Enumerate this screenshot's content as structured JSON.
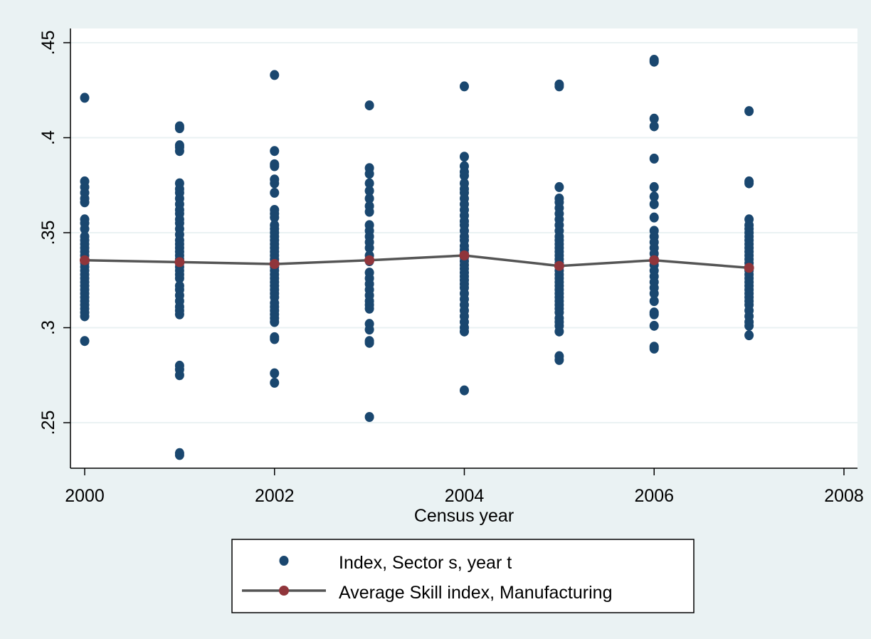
{
  "colors": {
    "outer_background": "#eaf2f3",
    "plot_background": "#ffffff",
    "grid": "#eaf2f3",
    "scatter_marker": "#1a476f",
    "mean_line": "#555555",
    "mean_marker": "#90353b"
  },
  "chart_data": {
    "type": "scatter",
    "title": "",
    "xlabel": "Census year",
    "ylabel": "",
    "xlim": [
      2000,
      2008
    ],
    "ylim": [
      0.23,
      0.455
    ],
    "x_ticks": [
      2000,
      2002,
      2004,
      2006,
      2008
    ],
    "x_tick_labels": [
      "2000",
      "2002",
      "2004",
      "2006",
      "2008"
    ],
    "y_ticks": [
      0.25,
      0.3,
      0.35,
      0.4,
      0.45
    ],
    "y_tick_labels": [
      ".25",
      ".3",
      ".35",
      ".4",
      ".45"
    ],
    "grid": "horizontal",
    "legend_position": "bottom",
    "series": [
      {
        "name": "Index, Sector s, year t",
        "kind": "scatter",
        "points": [
          {
            "x": 2000,
            "y": [
              0.421,
              0.377,
              0.374,
              0.371,
              0.368,
              0.366,
              0.357,
              0.355,
              0.352,
              0.348,
              0.346,
              0.344,
              0.342,
              0.34,
              0.338,
              0.336,
              0.334,
              0.332,
              0.33,
              0.328,
              0.326,
              0.324,
              0.322,
              0.32,
              0.318,
              0.316,
              0.314,
              0.312,
              0.31,
              0.308,
              0.306,
              0.293
            ]
          },
          {
            "x": 2001,
            "y": [
              0.406,
              0.405,
              0.396,
              0.395,
              0.393,
              0.376,
              0.373,
              0.371,
              0.368,
              0.365,
              0.362,
              0.36,
              0.357,
              0.355,
              0.352,
              0.349,
              0.346,
              0.344,
              0.342,
              0.34,
              0.338,
              0.336,
              0.334,
              0.332,
              0.33,
              0.328,
              0.326,
              0.322,
              0.32,
              0.317,
              0.314,
              0.311,
              0.309,
              0.307,
              0.28,
              0.278,
              0.275,
              0.234,
              0.233
            ]
          },
          {
            "x": 2002,
            "y": [
              0.433,
              0.393,
              0.386,
              0.385,
              0.378,
              0.376,
              0.371,
              0.362,
              0.36,
              0.358,
              0.354,
              0.352,
              0.35,
              0.348,
              0.346,
              0.344,
              0.342,
              0.34,
              0.338,
              0.336,
              0.334,
              0.332,
              0.33,
              0.328,
              0.326,
              0.324,
              0.322,
              0.32,
              0.318,
              0.316,
              0.313,
              0.311,
              0.309,
              0.307,
              0.305,
              0.303,
              0.295,
              0.294,
              0.276,
              0.271
            ]
          },
          {
            "x": 2003,
            "y": [
              0.417,
              0.384,
              0.381,
              0.376,
              0.372,
              0.368,
              0.364,
              0.361,
              0.354,
              0.351,
              0.348,
              0.345,
              0.342,
              0.338,
              0.335,
              0.329,
              0.326,
              0.323,
              0.32,
              0.317,
              0.314,
              0.312,
              0.31,
              0.302,
              0.299,
              0.293,
              0.292,
              0.253
            ]
          },
          {
            "x": 2004,
            "y": [
              0.427,
              0.39,
              0.385,
              0.382,
              0.38,
              0.376,
              0.373,
              0.371,
              0.368,
              0.365,
              0.362,
              0.359,
              0.356,
              0.354,
              0.351,
              0.348,
              0.346,
              0.343,
              0.341,
              0.339,
              0.337,
              0.335,
              0.333,
              0.331,
              0.329,
              0.327,
              0.325,
              0.323,
              0.321,
              0.318,
              0.315,
              0.312,
              0.309,
              0.306,
              0.303,
              0.3,
              0.298,
              0.267
            ]
          },
          {
            "x": 2005,
            "y": [
              0.428,
              0.427,
              0.374,
              0.368,
              0.366,
              0.363,
              0.36,
              0.357,
              0.354,
              0.351,
              0.348,
              0.346,
              0.344,
              0.342,
              0.34,
              0.338,
              0.336,
              0.334,
              0.332,
              0.33,
              0.328,
              0.326,
              0.324,
              0.322,
              0.32,
              0.318,
              0.316,
              0.314,
              0.312,
              0.31,
              0.308,
              0.305,
              0.303,
              0.301,
              0.298,
              0.285,
              0.283
            ]
          },
          {
            "x": 2006,
            "y": [
              0.441,
              0.44,
              0.41,
              0.406,
              0.389,
              0.374,
              0.369,
              0.365,
              0.358,
              0.351,
              0.348,
              0.345,
              0.342,
              0.339,
              0.336,
              0.333,
              0.33,
              0.327,
              0.324,
              0.321,
              0.318,
              0.314,
              0.308,
              0.307,
              0.301,
              0.29,
              0.289
            ]
          },
          {
            "x": 2007,
            "y": [
              0.414,
              0.377,
              0.376,
              0.357,
              0.354,
              0.352,
              0.35,
              0.348,
              0.346,
              0.344,
              0.342,
              0.34,
              0.338,
              0.336,
              0.334,
              0.332,
              0.33,
              0.328,
              0.326,
              0.324,
              0.322,
              0.32,
              0.318,
              0.316,
              0.314,
              0.312,
              0.309,
              0.306,
              0.303,
              0.301,
              0.296
            ]
          }
        ]
      },
      {
        "name": "Average Skill index, Manufacturing",
        "kind": "line",
        "x": [
          2000,
          2001,
          2002,
          2003,
          2004,
          2005,
          2006,
          2007
        ],
        "y": [
          0.3355,
          0.3345,
          0.3335,
          0.3355,
          0.338,
          0.3325,
          0.3355,
          0.3315
        ]
      }
    ]
  }
}
